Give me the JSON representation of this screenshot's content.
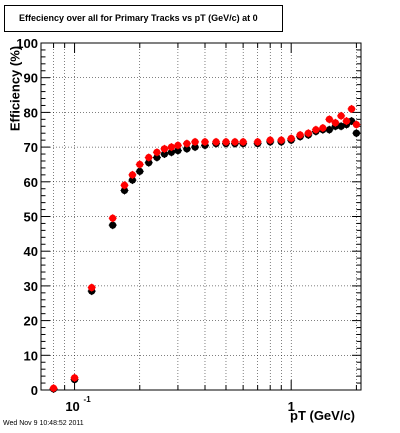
{
  "title": "Effeciency over all for Primary Tracks vs pT (GeV/c) at 0",
  "ylabel": "Efficiency (%)",
  "xlabel": "pT (GeV/c)",
  "timestamp": "Wed Nov  9 10:48:52 2011",
  "colors": {
    "series_red": "#ff0000",
    "series_black": "#000000",
    "grid": "#000000"
  },
  "chart_data": {
    "type": "scatter",
    "title": "Effeciency over all for Primary Tracks vs pT (GeV/c) at 0",
    "xlabel": "pT (GeV/c)",
    "ylabel": "Efficiency (%)",
    "xscale": "log",
    "xlim": [
      0.07,
      2.1
    ],
    "ylim": [
      0,
      100
    ],
    "grid": true,
    "legend": "none",
    "x_tick_labels": [
      "10^-1",
      "1"
    ],
    "y_ticks": [
      0,
      10,
      20,
      30,
      40,
      50,
      60,
      70,
      80,
      90,
      100
    ],
    "series": [
      {
        "color": "#000000",
        "x": [
          0.08,
          0.1,
          0.12,
          0.15,
          0.17,
          0.185,
          0.2,
          0.22,
          0.24,
          0.26,
          0.28,
          0.3,
          0.33,
          0.36,
          0.4,
          0.45,
          0.5,
          0.55,
          0.6,
          0.7,
          0.8,
          0.9,
          1.0,
          1.1,
          1.2,
          1.3,
          1.4,
          1.5,
          1.6,
          1.7,
          1.8,
          1.9,
          2.0
        ],
        "y": [
          0.3,
          3.0,
          28.5,
          47.5,
          57.5,
          60.5,
          63.0,
          65.5,
          67.0,
          68.0,
          68.5,
          69.0,
          69.5,
          70.0,
          70.5,
          71.0,
          71.0,
          71.0,
          71.0,
          71.0,
          71.5,
          71.5,
          72.0,
          73.0,
          73.5,
          74.5,
          75.0,
          75.0,
          76.0,
          76.0,
          76.5,
          77.5,
          74.0
        ]
      },
      {
        "color": "#ff0000",
        "x": [
          0.08,
          0.1,
          0.12,
          0.15,
          0.17,
          0.185,
          0.2,
          0.22,
          0.24,
          0.26,
          0.28,
          0.3,
          0.33,
          0.36,
          0.4,
          0.45,
          0.5,
          0.55,
          0.6,
          0.7,
          0.8,
          0.9,
          1.0,
          1.1,
          1.2,
          1.3,
          1.4,
          1.5,
          1.6,
          1.7,
          1.8,
          1.9,
          2.0
        ],
        "y": [
          0.5,
          3.5,
          29.5,
          49.5,
          59.0,
          62.0,
          65.0,
          67.0,
          68.5,
          69.5,
          70.0,
          70.5,
          71.0,
          71.5,
          71.5,
          71.5,
          71.5,
          71.5,
          71.5,
          71.5,
          72.0,
          72.0,
          72.5,
          73.5,
          74.0,
          75.0,
          75.5,
          78.0,
          77.0,
          79.0,
          77.5,
          81.0,
          76.5
        ]
      }
    ]
  }
}
